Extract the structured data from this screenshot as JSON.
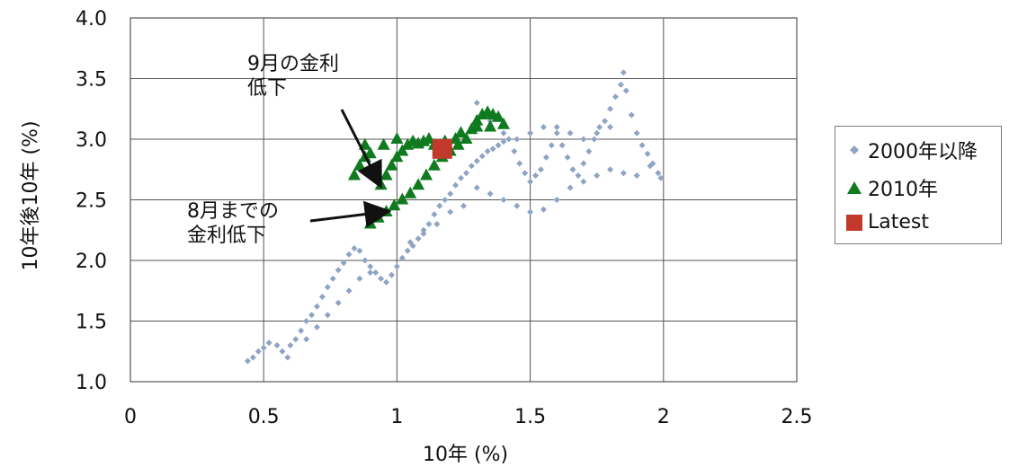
{
  "chart_data": {
    "type": "scatter",
    "xlabel": "10年 (%)",
    "ylabel": "10年後10年 (%)",
    "xlim": [
      0,
      2.5
    ],
    "ylim": [
      1.0,
      4.0
    ],
    "xticks": [
      "0",
      "0.5",
      "1",
      "1.5",
      "2",
      "2.5"
    ],
    "yticks": [
      "1.0",
      "1.5",
      "2.0",
      "2.5",
      "3.0",
      "3.5",
      "4.0"
    ],
    "grid": true,
    "legend_position": "right",
    "legend": [
      "2000年以降",
      "2010年",
      "Latest"
    ],
    "annotations": [
      {
        "text": "9月の金利\n低下",
        "arrow_to": [
          0.93,
          2.65
        ]
      },
      {
        "text": "8月までの\n金利低下",
        "arrow_to": [
          0.95,
          2.4
        ]
      }
    ],
    "series": [
      {
        "name": "2000年以降",
        "color": "#8fa3c3",
        "marker": "diamond",
        "points": [
          [
            0.44,
            1.17
          ],
          [
            0.46,
            1.2
          ],
          [
            0.48,
            1.25
          ],
          [
            0.5,
            1.28
          ],
          [
            0.52,
            1.32
          ],
          [
            0.55,
            1.3
          ],
          [
            0.57,
            1.25
          ],
          [
            0.59,
            1.2
          ],
          [
            0.6,
            1.3
          ],
          [
            0.62,
            1.35
          ],
          [
            0.64,
            1.42
          ],
          [
            0.66,
            1.5
          ],
          [
            0.68,
            1.55
          ],
          [
            0.7,
            1.62
          ],
          [
            0.72,
            1.7
          ],
          [
            0.74,
            1.78
          ],
          [
            0.76,
            1.85
          ],
          [
            0.78,
            1.92
          ],
          [
            0.8,
            1.98
          ],
          [
            0.82,
            2.05
          ],
          [
            0.84,
            2.1
          ],
          [
            0.86,
            2.08
          ],
          [
            0.88,
            2.0
          ],
          [
            0.9,
            1.95
          ],
          [
            0.92,
            1.9
          ],
          [
            0.94,
            1.85
          ],
          [
            0.96,
            1.82
          ],
          [
            0.98,
            1.88
          ],
          [
            1.0,
            1.95
          ],
          [
            1.02,
            2.02
          ],
          [
            1.04,
            2.08
          ],
          [
            1.06,
            2.12
          ],
          [
            1.08,
            2.18
          ],
          [
            1.1,
            2.22
          ],
          [
            1.12,
            2.3
          ],
          [
            1.14,
            2.38
          ],
          [
            1.16,
            2.45
          ],
          [
            1.18,
            2.5
          ],
          [
            1.2,
            2.55
          ],
          [
            1.22,
            2.62
          ],
          [
            1.24,
            2.68
          ],
          [
            1.26,
            2.72
          ],
          [
            1.28,
            2.78
          ],
          [
            1.3,
            2.82
          ],
          [
            1.32,
            2.86
          ],
          [
            1.34,
            2.9
          ],
          [
            1.36,
            2.92
          ],
          [
            1.38,
            2.95
          ],
          [
            1.4,
            2.98
          ],
          [
            1.42,
            3.0
          ],
          [
            1.44,
            2.9
          ],
          [
            1.46,
            2.8
          ],
          [
            1.48,
            2.72
          ],
          [
            1.5,
            2.65
          ],
          [
            1.52,
            2.7
          ],
          [
            1.54,
            2.75
          ],
          [
            1.56,
            2.85
          ],
          [
            1.58,
            2.95
          ],
          [
            1.6,
            3.05
          ],
          [
            1.62,
            2.95
          ],
          [
            1.64,
            2.85
          ],
          [
            1.66,
            2.75
          ],
          [
            1.68,
            2.7
          ],
          [
            1.7,
            2.8
          ],
          [
            1.72,
            2.9
          ],
          [
            1.74,
            3.0
          ],
          [
            1.76,
            3.1
          ],
          [
            1.78,
            3.15
          ],
          [
            1.8,
            3.25
          ],
          [
            1.82,
            3.35
          ],
          [
            1.84,
            3.45
          ],
          [
            1.85,
            3.55
          ],
          [
            1.86,
            3.4
          ],
          [
            1.88,
            3.2
          ],
          [
            1.9,
            3.05
          ],
          [
            1.92,
            2.95
          ],
          [
            1.94,
            2.88
          ],
          [
            1.96,
            2.8
          ],
          [
            1.98,
            2.72
          ],
          [
            1.99,
            2.68
          ],
          [
            1.3,
            2.6
          ],
          [
            1.35,
            2.55
          ],
          [
            1.4,
            2.5
          ],
          [
            1.45,
            2.45
          ],
          [
            1.5,
            2.4
          ],
          [
            1.55,
            2.42
          ],
          [
            1.6,
            2.5
          ],
          [
            1.65,
            2.6
          ],
          [
            1.7,
            2.65
          ],
          [
            1.75,
            2.7
          ],
          [
            1.8,
            2.75
          ],
          [
            1.85,
            2.72
          ],
          [
            1.9,
            2.7
          ],
          [
            1.95,
            2.78
          ],
          [
            1.2,
            2.4
          ],
          [
            1.25,
            2.45
          ],
          [
            1.15,
            2.3
          ],
          [
            1.1,
            2.25
          ],
          [
            1.05,
            2.15
          ],
          [
            1.3,
            3.3
          ],
          [
            1.35,
            3.15
          ],
          [
            1.4,
            3.05
          ],
          [
            1.45,
            3.0
          ],
          [
            1.5,
            3.05
          ],
          [
            1.55,
            3.1
          ],
          [
            1.6,
            3.1
          ],
          [
            1.65,
            3.05
          ],
          [
            1.7,
            3.0
          ],
          [
            1.75,
            3.05
          ],
          [
            1.8,
            3.1
          ],
          [
            0.66,
            1.35
          ],
          [
            0.7,
            1.45
          ],
          [
            0.74,
            1.55
          ],
          [
            0.78,
            1.65
          ],
          [
            0.82,
            1.75
          ],
          [
            0.86,
            1.85
          ],
          [
            0.9,
            1.9
          ]
        ]
      },
      {
        "name": "2010年",
        "color": "#0f7a1e",
        "marker": "triangle",
        "points": [
          [
            0.84,
            2.7
          ],
          [
            0.86,
            2.78
          ],
          [
            0.88,
            2.85
          ],
          [
            0.9,
            2.88
          ],
          [
            0.92,
            2.7
          ],
          [
            0.94,
            2.62
          ],
          [
            0.96,
            2.7
          ],
          [
            0.98,
            2.78
          ],
          [
            1.0,
            2.85
          ],
          [
            1.02,
            2.9
          ],
          [
            1.04,
            2.95
          ],
          [
            1.06,
            2.98
          ],
          [
            1.08,
            2.96
          ],
          [
            1.1,
            2.98
          ],
          [
            1.12,
            3.0
          ],
          [
            1.14,
            2.95
          ],
          [
            0.9,
            2.3
          ],
          [
            0.93,
            2.35
          ],
          [
            0.96,
            2.4
          ],
          [
            0.99,
            2.45
          ],
          [
            1.02,
            2.5
          ],
          [
            1.05,
            2.55
          ],
          [
            1.08,
            2.62
          ],
          [
            1.11,
            2.7
          ],
          [
            1.14,
            2.78
          ],
          [
            1.17,
            2.85
          ],
          [
            1.2,
            2.9
          ],
          [
            1.23,
            2.95
          ],
          [
            1.26,
            3.0
          ],
          [
            1.28,
            3.08
          ],
          [
            1.3,
            3.15
          ],
          [
            1.32,
            3.2
          ],
          [
            1.34,
            3.22
          ],
          [
            1.36,
            3.2
          ],
          [
            1.38,
            3.18
          ],
          [
            1.4,
            3.12
          ],
          [
            1.24,
            3.05
          ],
          [
            1.22,
            3.0
          ],
          [
            1.18,
            2.98
          ],
          [
            0.88,
            2.95
          ],
          [
            0.95,
            2.95
          ],
          [
            1.0,
            3.0
          ],
          [
            0.92,
            2.75
          ],
          [
            1.3,
            3.1
          ],
          [
            1.35,
            3.1
          ]
        ]
      },
      {
        "name": "Latest",
        "color": "#c0392b",
        "marker": "square",
        "points": [
          [
            1.17,
            2.92
          ]
        ]
      }
    ]
  }
}
